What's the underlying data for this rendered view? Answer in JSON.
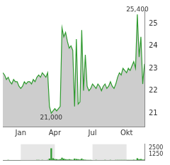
{
  "chart_data": [
    {
      "type": "line",
      "categories": [
        null,
        null,
        null,
        null,
        null,
        null,
        null,
        null,
        null,
        null,
        "Jan",
        null,
        null,
        null,
        null,
        null,
        null,
        null,
        null,
        null,
        null,
        null,
        null,
        null,
        null,
        null,
        null,
        null,
        null,
        "Apr",
        null,
        null,
        null,
        null,
        null,
        null,
        null,
        null,
        null,
        null,
        null,
        null,
        null,
        null,
        null,
        null,
        null,
        null,
        null,
        null,
        "Jul",
        null,
        null,
        null,
        null,
        null,
        null,
        null,
        null,
        null,
        null,
        null,
        null,
        null,
        null,
        null,
        null,
        null,
        null,
        "Okt",
        null,
        null,
        null,
        null,
        null,
        null,
        null,
        null,
        null,
        null
      ],
      "values": [
        22.8,
        22.7,
        22.5,
        22.6,
        22.4,
        22.3,
        22.5,
        22.4,
        22.4,
        22.2,
        22.1,
        22.2,
        22.4,
        22.3,
        22.4,
        22.4,
        22.3,
        22.5,
        22.4,
        22.6,
        22.7,
        22.6,
        22.8,
        22.7,
        22.6,
        22.8,
        21.3,
        21.0,
        21.1,
        21.2,
        21.1,
        21.2,
        21.3,
        24.8,
        24.4,
        24.6,
        24.2,
        23.9,
        24.0,
        23.8,
        21.3,
        24.3,
        21.4,
        21.5,
        24.7,
        22.0,
        23.6,
        22.2,
        22.0,
        22.1,
        22.3,
        22.2,
        22.1,
        22.3,
        22.2,
        22.0,
        22.2,
        22.3,
        22.1,
        22.2,
        22.4,
        22.2,
        22.1,
        22.3,
        22.6,
        22.8,
        22.7,
        23.0,
        22.9,
        22.8,
        23.0,
        22.9,
        23.1,
        23.3,
        23.0,
        25.4,
        23.5,
        24.4,
        22.3,
        23.2
      ],
      "color": "#2e9a2e",
      "ylim": [
        20.4,
        25.6
      ],
      "yticks": [
        21,
        22,
        23,
        24,
        25
      ],
      "grid": false,
      "annotations": [
        {
          "value": 25.4,
          "label": "25,400"
        },
        {
          "value": 21.0,
          "label": "21,000"
        }
      ]
    },
    {
      "type": "bar",
      "categories": [
        null,
        null,
        null,
        null,
        null,
        null,
        null,
        null,
        null,
        null,
        "Jan",
        null,
        null,
        null,
        null,
        null,
        null,
        null,
        null,
        null,
        null,
        null,
        null,
        null,
        null,
        null,
        null,
        null,
        null,
        "Apr",
        null,
        null,
        null,
        null,
        null,
        null,
        null,
        null,
        null,
        null,
        null,
        null,
        null,
        null,
        null,
        null,
        null,
        null,
        null,
        null,
        "Jul",
        null,
        null,
        null,
        null,
        null,
        null,
        null,
        null,
        null,
        null,
        null,
        null,
        null,
        null,
        null,
        null,
        null,
        null,
        "Okt",
        null,
        null,
        null,
        null,
        null,
        null,
        null,
        null,
        null,
        null
      ],
      "values": [
        40,
        30,
        20,
        50,
        30,
        20,
        30,
        20,
        40,
        30,
        20,
        30,
        40,
        20,
        30,
        20,
        40,
        30,
        20,
        50,
        60,
        40,
        50,
        30,
        40,
        60,
        300,
        2400,
        400,
        250,
        200,
        150,
        200,
        500,
        300,
        200,
        150,
        200,
        150,
        100,
        300,
        250,
        200,
        150,
        300,
        120,
        100,
        80,
        60,
        50,
        40,
        30,
        50,
        40,
        30,
        40,
        30,
        50,
        40,
        30,
        60,
        40,
        30,
        50,
        80,
        60,
        70,
        60,
        50,
        70,
        60,
        50,
        80,
        90,
        70,
        400,
        200,
        250,
        150,
        120
      ],
      "color": "#2e9a2e",
      "ylim": [
        0,
        3200
      ],
      "yticks": [
        1250,
        2500
      ],
      "grid": false,
      "tick_labels": "y"
    }
  ]
}
